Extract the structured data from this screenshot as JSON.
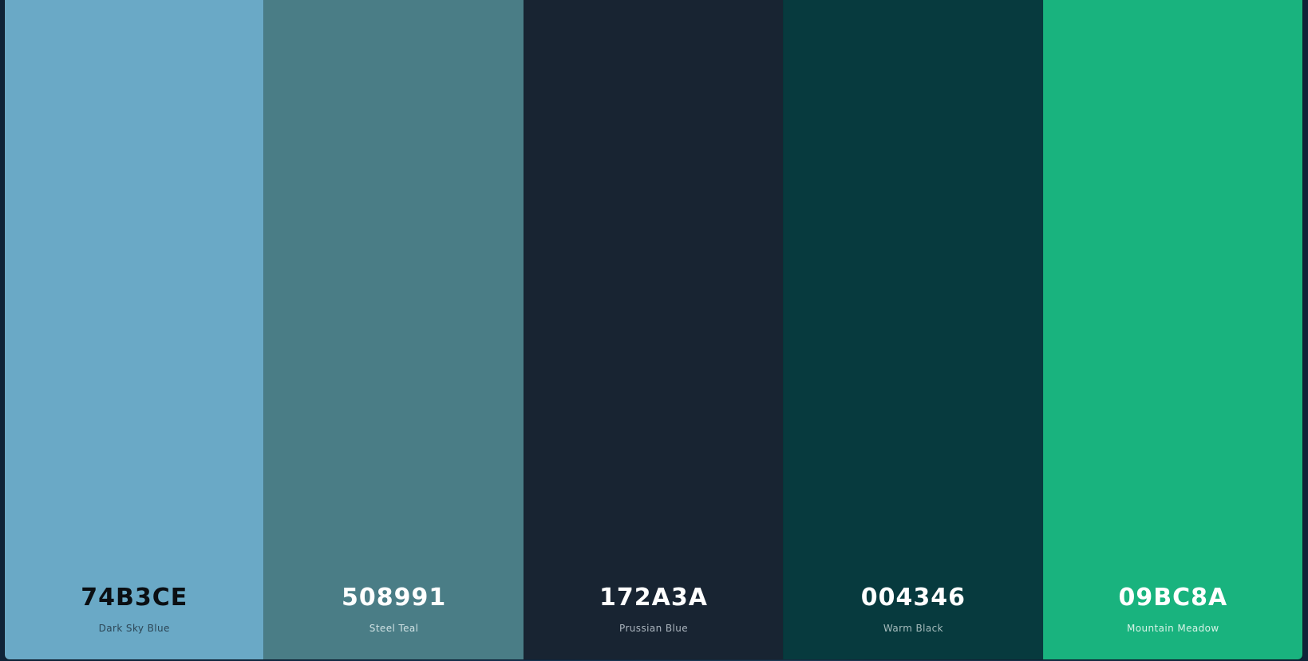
{
  "palette": {
    "colors": [
      {
        "hex": "74B3CE",
        "name": "Dark Sky Blue",
        "bg": "#6aa9c6",
        "hex_color": "#0b0f13",
        "name_color": "#2c4656"
      },
      {
        "hex": "508991",
        "name": "Steel Teal",
        "bg": "#4a7d86",
        "hex_color": "#ffffff",
        "name_color": "#cfe1e3"
      },
      {
        "hex": "172A3A",
        "name": "Prussian Blue",
        "bg": "#182432",
        "hex_color": "#ffffff",
        "name_color": "#aab4bd"
      },
      {
        "hex": "004346",
        "name": "Warm Black",
        "bg": "#073a3e",
        "hex_color": "#ffffff",
        "name_color": "#a6bcbd"
      },
      {
        "hex": "09BC8A",
        "name": "Mountain Meadow",
        "bg": "#19b37e",
        "hex_color": "#ffffff",
        "name_color": "#d7f3e7"
      }
    ]
  }
}
